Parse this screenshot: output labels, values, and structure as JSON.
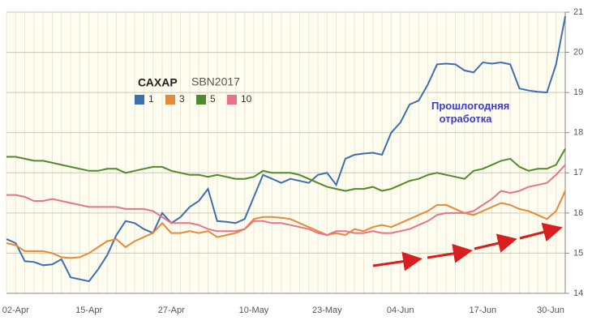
{
  "chart_data": {
    "type": "line",
    "title": "САХАР",
    "subtitle": "SBN2017",
    "annotation": "Прошлогодняя отработка",
    "categories": [
      null,
      "02-Apr",
      null,
      null,
      null,
      null,
      null,
      null,
      null,
      "15-Apr",
      null,
      null,
      null,
      null,
      null,
      null,
      null,
      null,
      "27-Apr",
      null,
      null,
      null,
      null,
      null,
      null,
      null,
      null,
      "10-May",
      null,
      null,
      null,
      null,
      null,
      null,
      null,
      "23-May",
      null,
      null,
      null,
      null,
      null,
      null,
      null,
      "04-Jun",
      null,
      null,
      null,
      null,
      null,
      null,
      null,
      null,
      "17-Jun",
      null,
      null,
      null,
      null,
      null,
      null,
      null,
      null,
      "30-Jun"
    ],
    "ylim": [
      14,
      21
    ],
    "yticks": [
      14,
      15,
      16,
      17,
      18,
      19,
      20,
      21
    ],
    "grid": true,
    "series": [
      {
        "name": "1",
        "color": "#3d6fb0",
        "values": [
          15.35,
          15.25,
          14.8,
          14.78,
          14.7,
          14.72,
          14.85,
          14.4,
          14.35,
          14.3,
          14.6,
          14.95,
          15.45,
          15.8,
          15.75,
          15.6,
          15.5,
          16.0,
          15.75,
          15.9,
          16.15,
          16.3,
          16.6,
          15.8,
          15.78,
          15.75,
          15.85,
          16.4,
          16.95,
          16.85,
          16.75,
          16.85,
          16.8,
          16.75,
          16.95,
          17.0,
          16.7,
          17.35,
          17.45,
          17.48,
          17.5,
          17.45,
          18.0,
          18.25,
          18.7,
          18.8,
          19.2,
          19.7,
          19.72,
          19.7,
          19.55,
          19.5,
          19.75,
          19.72,
          19.75,
          19.7,
          19.1,
          19.05,
          19.02,
          19.0,
          19.7,
          20.9
        ]
      },
      {
        "name": "3",
        "color": "#e8883a",
        "values": [
          15.25,
          15.2,
          15.05,
          15.05,
          15.05,
          15.0,
          14.9,
          14.88,
          14.9,
          15.0,
          15.15,
          15.3,
          15.35,
          15.15,
          15.3,
          15.4,
          15.5,
          15.75,
          15.5,
          15.5,
          15.55,
          15.5,
          15.55,
          15.4,
          15.45,
          15.5,
          15.6,
          15.85,
          15.9,
          15.9,
          15.88,
          15.85,
          15.75,
          15.65,
          15.55,
          15.45,
          15.5,
          15.45,
          15.6,
          15.55,
          15.65,
          15.7,
          15.65,
          15.75,
          15.85,
          15.95,
          16.05,
          16.2,
          16.2,
          16.1,
          16.0,
          15.95,
          16.05,
          16.15,
          16.25,
          16.2,
          16.1,
          16.05,
          15.95,
          15.85,
          16.05,
          16.55
        ]
      },
      {
        "name": "5",
        "color": "#4f8a2b",
        "values": [
          17.4,
          17.4,
          17.35,
          17.3,
          17.3,
          17.25,
          17.2,
          17.15,
          17.1,
          17.05,
          17.05,
          17.1,
          17.1,
          17.0,
          17.05,
          17.1,
          17.15,
          17.15,
          17.05,
          17.0,
          16.95,
          16.95,
          16.9,
          16.95,
          16.9,
          16.85,
          16.85,
          16.9,
          17.05,
          17.0,
          17.0,
          17.0,
          16.95,
          16.85,
          16.75,
          16.65,
          16.6,
          16.55,
          16.6,
          16.6,
          16.65,
          16.55,
          16.6,
          16.7,
          16.8,
          16.85,
          16.95,
          17.0,
          16.95,
          16.9,
          16.85,
          17.05,
          17.1,
          17.2,
          17.3,
          17.35,
          17.15,
          17.05,
          17.1,
          17.1,
          17.2,
          17.6
        ]
      },
      {
        "name": "10",
        "color": "#e8728a",
        "values": [
          16.45,
          16.45,
          16.4,
          16.3,
          16.3,
          16.35,
          16.3,
          16.25,
          16.2,
          16.15,
          16.15,
          16.15,
          16.15,
          16.1,
          16.1,
          16.1,
          16.05,
          15.9,
          15.75,
          15.75,
          15.75,
          15.7,
          15.6,
          15.55,
          15.55,
          15.55,
          15.6,
          15.8,
          15.8,
          15.75,
          15.75,
          15.7,
          15.65,
          15.6,
          15.5,
          15.45,
          15.55,
          15.55,
          15.5,
          15.5,
          15.55,
          15.5,
          15.5,
          15.55,
          15.6,
          15.7,
          15.8,
          15.95,
          16.0,
          16.0,
          16.0,
          16.05,
          16.2,
          16.35,
          16.55,
          16.5,
          16.55,
          16.65,
          16.7,
          16.75,
          16.95,
          17.2
        ]
      }
    ]
  }
}
